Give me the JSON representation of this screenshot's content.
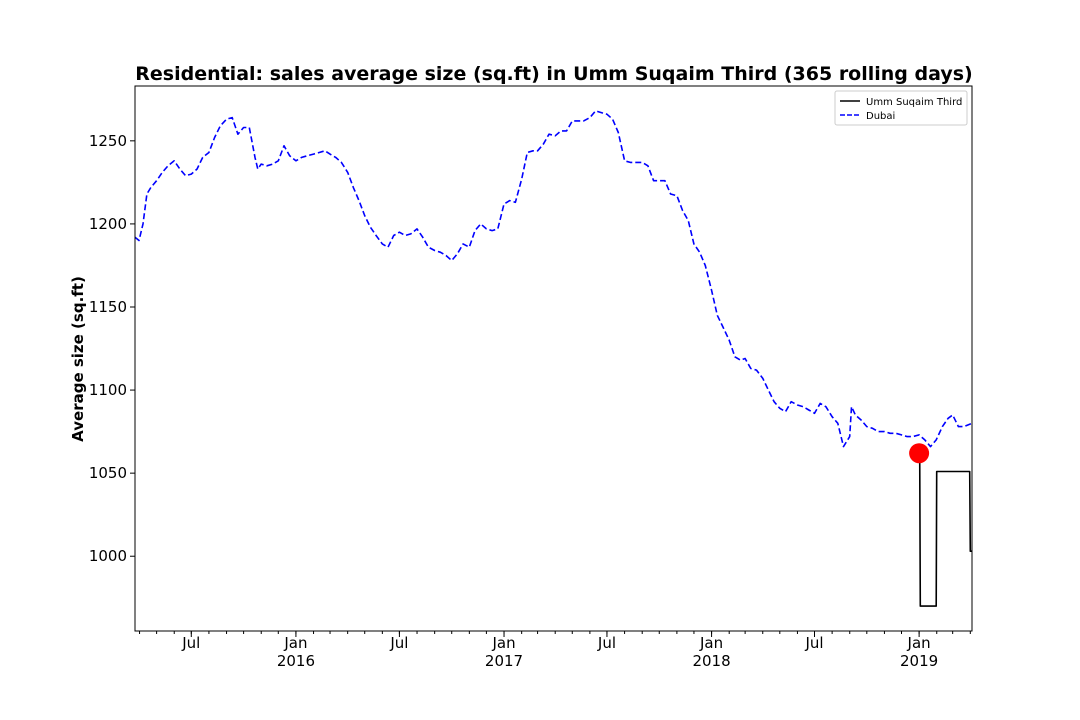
{
  "chart_data": {
    "type": "line",
    "title": "Residential: sales average size (sq.ft) in Umm Suqaim Third (365 rolling days)",
    "xlabel": "",
    "ylabel": "Average size (sq.ft)",
    "xlim": [
      "2015-03-24",
      "2019-04-04"
    ],
    "ylim": [
      955,
      1283
    ],
    "yticks": [
      1000,
      1050,
      1100,
      1150,
      1200,
      1250
    ],
    "xticks": [
      {
        "date": "2015-07-01",
        "label": "Jul",
        "year": ""
      },
      {
        "date": "2016-01-01",
        "label": "Jan",
        "year": "2016"
      },
      {
        "date": "2016-07-01",
        "label": "Jul",
        "year": ""
      },
      {
        "date": "2017-01-01",
        "label": "Jan",
        "year": "2017"
      },
      {
        "date": "2017-07-01",
        "label": "Jul",
        "year": ""
      },
      {
        "date": "2018-01-01",
        "label": "Jan",
        "year": "2018"
      },
      {
        "date": "2018-07-01",
        "label": "Jul",
        "year": ""
      },
      {
        "date": "2019-01-01",
        "label": "Jan",
        "year": "2019"
      }
    ],
    "legend_position": "top-right",
    "series": [
      {
        "name": "Umm Suqaim Third",
        "color": "#000000",
        "style": "solid",
        "points": [
          [
            "2019-01-01",
            1062
          ],
          [
            "2019-01-02",
            1062
          ],
          [
            "2019-01-03",
            970
          ],
          [
            "2019-01-31",
            970
          ],
          [
            "2019-02-01",
            1051
          ],
          [
            "2019-03-01",
            1051
          ],
          [
            "2019-03-31",
            1051
          ],
          [
            "2019-04-01",
            1003
          ],
          [
            "2019-04-04",
            1003
          ]
        ]
      },
      {
        "name": "Dubai",
        "color": "#0000ff",
        "style": "dashed",
        "points": [
          [
            "2015-03-24",
            1192
          ],
          [
            "2015-03-31",
            1190
          ],
          [
            "2015-04-07",
            1200
          ],
          [
            "2015-04-14",
            1218
          ],
          [
            "2015-04-21",
            1222
          ],
          [
            "2015-05-01",
            1226
          ],
          [
            "2015-05-11",
            1231
          ],
          [
            "2015-05-21",
            1235
          ],
          [
            "2015-06-01",
            1238
          ],
          [
            "2015-06-11",
            1233
          ],
          [
            "2015-06-21",
            1229
          ],
          [
            "2015-07-01",
            1230
          ],
          [
            "2015-07-11",
            1233
          ],
          [
            "2015-07-21",
            1240
          ],
          [
            "2015-08-01",
            1243
          ],
          [
            "2015-08-11",
            1252
          ],
          [
            "2015-08-21",
            1259
          ],
          [
            "2015-09-01",
            1263
          ],
          [
            "2015-09-11",
            1264
          ],
          [
            "2015-09-21",
            1254
          ],
          [
            "2015-10-01",
            1258
          ],
          [
            "2015-10-11",
            1258
          ],
          [
            "2015-10-21",
            1240
          ],
          [
            "2015-10-26",
            1233
          ],
          [
            "2015-11-01",
            1236
          ],
          [
            "2015-11-11",
            1235
          ],
          [
            "2015-11-21",
            1236
          ],
          [
            "2015-12-01",
            1238
          ],
          [
            "2015-12-11",
            1247
          ],
          [
            "2015-12-21",
            1241
          ],
          [
            "2016-01-01",
            1238
          ],
          [
            "2016-01-11",
            1240
          ],
          [
            "2016-01-21",
            1241
          ],
          [
            "2016-02-01",
            1242
          ],
          [
            "2016-02-11",
            1243
          ],
          [
            "2016-02-21",
            1244
          ],
          [
            "2016-03-01",
            1242
          ],
          [
            "2016-03-11",
            1240
          ],
          [
            "2016-03-21",
            1237
          ],
          [
            "2016-04-01",
            1231
          ],
          [
            "2016-04-11",
            1222
          ],
          [
            "2016-04-21",
            1214
          ],
          [
            "2016-05-01",
            1205
          ],
          [
            "2016-05-11",
            1198
          ],
          [
            "2016-05-21",
            1193
          ],
          [
            "2016-06-01",
            1188
          ],
          [
            "2016-06-11",
            1186
          ],
          [
            "2016-06-21",
            1193
          ],
          [
            "2016-07-01",
            1195
          ],
          [
            "2016-07-11",
            1193
          ],
          [
            "2016-07-21",
            1194
          ],
          [
            "2016-08-01",
            1197
          ],
          [
            "2016-08-11",
            1192
          ],
          [
            "2016-08-21",
            1186
          ],
          [
            "2016-09-01",
            1184
          ],
          [
            "2016-09-11",
            1183
          ],
          [
            "2016-09-21",
            1181
          ],
          [
            "2016-10-01",
            1178
          ],
          [
            "2016-10-11",
            1182
          ],
          [
            "2016-10-21",
            1188
          ],
          [
            "2016-11-01",
            1186
          ],
          [
            "2016-11-11",
            1196
          ],
          [
            "2016-11-21",
            1200
          ],
          [
            "2016-12-01",
            1197
          ],
          [
            "2016-12-11",
            1196
          ],
          [
            "2016-12-21",
            1197
          ],
          [
            "2017-01-01",
            1212
          ],
          [
            "2017-01-11",
            1214
          ],
          [
            "2017-01-21",
            1213
          ],
          [
            "2017-02-01",
            1227
          ],
          [
            "2017-02-11",
            1243
          ],
          [
            "2017-02-21",
            1244
          ],
          [
            "2017-03-01",
            1244
          ],
          [
            "2017-03-11",
            1248
          ],
          [
            "2017-03-21",
            1254
          ],
          [
            "2017-04-01",
            1253
          ],
          [
            "2017-04-11",
            1256
          ],
          [
            "2017-04-21",
            1256
          ],
          [
            "2017-05-01",
            1262
          ],
          [
            "2017-05-11",
            1262
          ],
          [
            "2017-05-21",
            1262
          ],
          [
            "2017-06-01",
            1264
          ],
          [
            "2017-06-11",
            1268
          ],
          [
            "2017-06-21",
            1267
          ],
          [
            "2017-07-01",
            1266
          ],
          [
            "2017-07-11",
            1263
          ],
          [
            "2017-07-21",
            1255
          ],
          [
            "2017-08-01",
            1238
          ],
          [
            "2017-08-11",
            1237
          ],
          [
            "2017-08-21",
            1237
          ],
          [
            "2017-09-01",
            1237
          ],
          [
            "2017-09-11",
            1235
          ],
          [
            "2017-09-21",
            1226
          ],
          [
            "2017-10-01",
            1226
          ],
          [
            "2017-10-11",
            1226
          ],
          [
            "2017-10-21",
            1218
          ],
          [
            "2017-11-01",
            1217
          ],
          [
            "2017-11-11",
            1208
          ],
          [
            "2017-11-21",
            1202
          ],
          [
            "2017-12-01",
            1188
          ],
          [
            "2017-12-11",
            1183
          ],
          [
            "2017-12-21",
            1175
          ],
          [
            "2018-01-01",
            1160
          ],
          [
            "2018-01-11",
            1145
          ],
          [
            "2018-01-21",
            1138
          ],
          [
            "2018-02-01",
            1130
          ],
          [
            "2018-02-11",
            1120
          ],
          [
            "2018-02-21",
            1118
          ],
          [
            "2018-03-01",
            1119
          ],
          [
            "2018-03-11",
            1113
          ],
          [
            "2018-03-21",
            1112
          ],
          [
            "2018-04-01",
            1107
          ],
          [
            "2018-04-11",
            1100
          ],
          [
            "2018-04-21",
            1093
          ],
          [
            "2018-05-01",
            1089
          ],
          [
            "2018-05-11",
            1087
          ],
          [
            "2018-05-21",
            1093
          ],
          [
            "2018-06-01",
            1091
          ],
          [
            "2018-06-11",
            1090
          ],
          [
            "2018-06-21",
            1088
          ],
          [
            "2018-07-01",
            1086
          ],
          [
            "2018-07-11",
            1092
          ],
          [
            "2018-07-21",
            1090
          ],
          [
            "2018-08-01",
            1084
          ],
          [
            "2018-08-11",
            1080
          ],
          [
            "2018-08-21",
            1066
          ],
          [
            "2018-09-01",
            1072
          ],
          [
            "2018-09-04",
            1090
          ],
          [
            "2018-09-11",
            1085
          ],
          [
            "2018-09-21",
            1082
          ],
          [
            "2018-10-01",
            1078
          ],
          [
            "2018-10-11",
            1077
          ],
          [
            "2018-10-21",
            1075
          ],
          [
            "2018-11-01",
            1075
          ],
          [
            "2018-11-11",
            1074
          ],
          [
            "2018-11-21",
            1074
          ],
          [
            "2018-12-01",
            1073
          ],
          [
            "2018-12-11",
            1072
          ],
          [
            "2018-12-21",
            1072
          ],
          [
            "2019-01-01",
            1073
          ],
          [
            "2019-01-11",
            1070
          ],
          [
            "2019-01-21",
            1066
          ],
          [
            "2019-01-31",
            1070
          ],
          [
            "2019-02-11",
            1078
          ],
          [
            "2019-02-21",
            1083
          ],
          [
            "2019-03-01",
            1085
          ],
          [
            "2019-03-11",
            1078
          ],
          [
            "2019-03-21",
            1078
          ],
          [
            "2019-04-04",
            1080
          ]
        ]
      }
    ],
    "marker": {
      "date": "2019-01-01",
      "value": 1062,
      "color": "#ff0000"
    }
  }
}
